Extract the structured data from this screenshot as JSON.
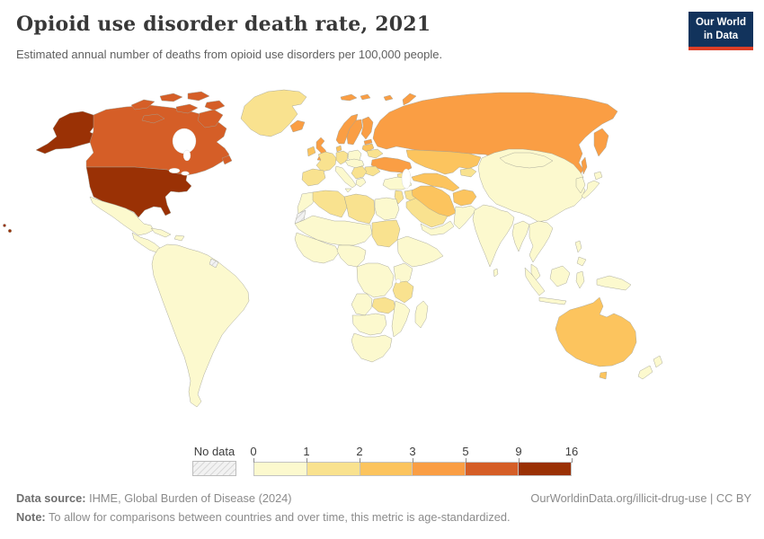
{
  "header": {
    "title": "Opioid use disorder death rate, 2021",
    "subtitle": "Estimated annual number of deaths from opioid use disorders per 100,000 people.",
    "logo": {
      "line1": "Our World",
      "line2": "in Data",
      "bg_color": "#12335c",
      "accent_color": "#dc3e26"
    }
  },
  "footer": {
    "data_source_prefix": "Data source:",
    "data_source_text": " IHME, Global Burden of Disease (2024)",
    "link_text": "OurWorldinData.org/illicit-drug-use | CC BY",
    "note_prefix": "Note:",
    "note_text": " To allow for comparisons between countries and over time, this metric is age-standardized."
  },
  "chart_data": {
    "type": "choropleth",
    "title": "Opioid use disorder death rate, 2021",
    "unit": "deaths per 100,000 people",
    "legend_ticks": [
      "0",
      "1",
      "2",
      "3",
      "5",
      "9",
      "16"
    ],
    "bins": [
      {
        "label": "0-1",
        "min": 0,
        "max": 1,
        "color": "#FCF9CE"
      },
      {
        "label": "1-2",
        "min": 1,
        "max": 2,
        "color": "#F9E28F"
      },
      {
        "label": "2-3",
        "min": 2,
        "max": 3,
        "color": "#FCC45E"
      },
      {
        "label": "3-5",
        "min": 3,
        "max": 5,
        "color": "#FA9E44"
      },
      {
        "label": "5-9",
        "min": 5,
        "max": 9,
        "color": "#D55E27"
      },
      {
        "label": "9-16",
        "min": 9,
        "max": 16,
        "color": "#9A3105"
      }
    ],
    "no_data": {
      "label": "No data",
      "hatch_color": "#d8d8d8"
    },
    "regions": {
      "united-states": "9-16",
      "canada": "5-9",
      "greenland": "1-2",
      "mexico": "0-1",
      "central-america": "0-1",
      "cuba": "0-1",
      "hispaniola": "0-1",
      "south-america": "0-1",
      "french-guiana": "no-data",
      "iceland": "3-5",
      "united-kingdom": "3-5",
      "ireland": "2-3",
      "norway": "3-5",
      "sweden": "3-5",
      "finland": "3-5",
      "svalbard": "3-5",
      "denmark": "2-3",
      "estonia": "3-5",
      "latvia-lithuania": "2-3",
      "germany": "1-2",
      "poland": "0-1",
      "france": "1-2",
      "iberia": "1-2",
      "italy": "0-1",
      "central-europe": "0-1",
      "balkans": "1-2",
      "greece": "0-1",
      "romania": "1-2",
      "belarus": "1-2",
      "ukraine": "3-5",
      "russia": "3-5",
      "kazakhstan": "2-3",
      "turkmenistan-uzbekistan": "2-3",
      "kyrgyzstan-tajikistan": "1-2",
      "caucasus": "1-2",
      "turkey": "0-1",
      "levant": "1-2",
      "iraq": "1-2",
      "saudi-arabia": "1-2",
      "yemen-oman": "0-1",
      "iran": "2-3",
      "afghanistan": "2-3",
      "pakistan": "0-1",
      "india": "0-1",
      "sri-lanka": "0-1",
      "china": "0-1",
      "mongolia": "0-1",
      "korea": "0-1",
      "japan": "0-1",
      "southeast-asia": "0-1",
      "malaysia": "0-1",
      "philippines": "0-1",
      "indonesia": "0-1",
      "new-guinea": "0-1",
      "australia": "2-3",
      "new-zealand": "0-1",
      "morocco": "0-1",
      "western-sahara": "no-data",
      "algeria": "1-2",
      "libya": "1-2",
      "egypt": "0-1",
      "sahel": "0-1",
      "sudan": "1-2",
      "west-africa": "0-1",
      "nigeria-cameroon": "0-1",
      "horn-of-africa": "0-1",
      "drc-central": "0-1",
      "kenya-uganda": "0-1",
      "tanzania": "1-2",
      "zambia": "1-2",
      "angola": "0-1",
      "mozambique": "0-1",
      "namibia-botswana": "0-1",
      "south-africa": "0-1",
      "madagascar": "0-1"
    }
  }
}
